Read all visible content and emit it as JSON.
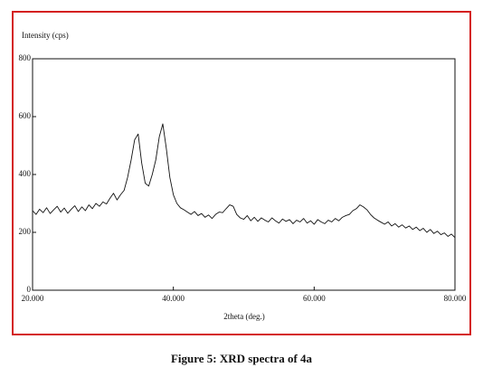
{
  "chart_data": {
    "type": "line",
    "y_label": "Intensity (cps)",
    "x_label": "2theta (deg.)",
    "caption": "Figure 5: XRD spectra of 4a",
    "xlim": [
      20,
      80
    ],
    "xticks": [
      {
        "value": 20,
        "label": "20.000"
      },
      {
        "value": 40,
        "label": "40.000"
      },
      {
        "value": 60,
        "label": "60.000"
      },
      {
        "value": 80,
        "label": "80.000"
      }
    ],
    "ylim": [
      0,
      800
    ],
    "yticks": [
      0,
      200,
      400,
      600,
      800
    ],
    "color": "#111111",
    "x": [
      20,
      20.5,
      21,
      21.5,
      22,
      22.5,
      23,
      23.5,
      24,
      24.5,
      25,
      25.5,
      26,
      26.5,
      27,
      27.5,
      28,
      28.5,
      29,
      29.5,
      30,
      30.5,
      31,
      31.5,
      32,
      32.5,
      33,
      33.5,
      34,
      34.5,
      35,
      35.5,
      36,
      36.5,
      37,
      37.5,
      38,
      38.5,
      39,
      39.5,
      40,
      40.5,
      41,
      41.5,
      42,
      42.5,
      43,
      43.5,
      44,
      44.5,
      45,
      45.5,
      46,
      46.5,
      47,
      47.5,
      48,
      48.5,
      49,
      49.5,
      50,
      50.5,
      51,
      51.5,
      52,
      52.5,
      53,
      53.5,
      54,
      54.5,
      55,
      55.5,
      56,
      56.5,
      57,
      57.5,
      58,
      58.5,
      59,
      59.5,
      60,
      60.5,
      61,
      61.5,
      62,
      62.5,
      63,
      63.5,
      64,
      64.5,
      65,
      65.5,
      66,
      66.5,
      67,
      67.5,
      68,
      68.5,
      69,
      69.5,
      70,
      70.5,
      71,
      71.5,
      72,
      72.5,
      73,
      73.5,
      74,
      74.5,
      75,
      75.5,
      76,
      76.5,
      77,
      77.5,
      78,
      78.5,
      79,
      79.5,
      80
    ],
    "values": [
      275,
      262,
      280,
      268,
      285,
      265,
      278,
      290,
      270,
      284,
      266,
      280,
      292,
      272,
      288,
      275,
      295,
      282,
      300,
      290,
      305,
      298,
      318,
      335,
      312,
      330,
      345,
      390,
      450,
      520,
      540,
      440,
      370,
      360,
      400,
      450,
      530,
      575,
      490,
      390,
      330,
      300,
      285,
      278,
      270,
      262,
      272,
      258,
      265,
      252,
      260,
      248,
      262,
      270,
      268,
      282,
      295,
      290,
      262,
      250,
      245,
      258,
      240,
      252,
      238,
      250,
      242,
      236,
      250,
      240,
      232,
      246,
      238,
      244,
      230,
      242,
      236,
      248,
      232,
      240,
      228,
      244,
      236,
      230,
      242,
      236,
      248,
      240,
      252,
      258,
      262,
      275,
      282,
      295,
      288,
      278,
      262,
      250,
      242,
      235,
      228,
      236,
      222,
      230,
      218,
      226,
      215,
      222,
      210,
      218,
      206,
      214,
      200,
      210,
      196,
      204,
      192,
      198,
      186,
      194,
      182
    ]
  }
}
